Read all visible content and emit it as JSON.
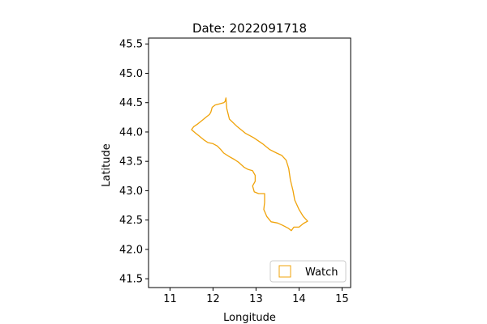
{
  "chart_data": {
    "type": "map",
    "title": "Date: 2022091718",
    "xlabel": "Longitude",
    "ylabel": "Latitude",
    "xlim": [
      10.5,
      15.2
    ],
    "ylim": [
      41.35,
      45.6
    ],
    "xticks": [
      11,
      12,
      13,
      14,
      15
    ],
    "yticks": [
      41.5,
      42.0,
      42.5,
      43.0,
      43.5,
      44.0,
      44.5,
      45.0,
      45.5
    ],
    "xtick_labels": [
      "11",
      "12",
      "13",
      "14",
      "15"
    ],
    "ytick_labels": [
      "41.5",
      "42.0",
      "42.5",
      "43.0",
      "43.5",
      "44.0",
      "44.5",
      "45.0",
      "45.5"
    ],
    "grid": false,
    "legend": {
      "position": "lower-right",
      "entries": [
        {
          "label": "Watch",
          "color": "#f0a30a"
        }
      ]
    },
    "series": [
      {
        "name": "Watch",
        "color": "#f0a30a",
        "points": [
          [
            12.3,
            44.58
          ],
          [
            12.28,
            44.52
          ],
          [
            12.25,
            44.5
          ],
          [
            12.15,
            44.48
          ],
          [
            12.05,
            44.46
          ],
          [
            11.98,
            44.42
          ],
          [
            11.95,
            44.34
          ],
          [
            11.92,
            44.3
          ],
          [
            11.85,
            44.26
          ],
          [
            11.75,
            44.2
          ],
          [
            11.65,
            44.14
          ],
          [
            11.55,
            44.09
          ],
          [
            11.5,
            44.04
          ],
          [
            11.58,
            43.99
          ],
          [
            11.68,
            43.93
          ],
          [
            11.78,
            43.87
          ],
          [
            11.88,
            43.82
          ],
          [
            12.0,
            43.8
          ],
          [
            12.1,
            43.76
          ],
          [
            12.18,
            43.7
          ],
          [
            12.25,
            43.64
          ],
          [
            12.38,
            43.58
          ],
          [
            12.5,
            43.53
          ],
          [
            12.6,
            43.48
          ],
          [
            12.72,
            43.4
          ],
          [
            12.82,
            43.36
          ],
          [
            12.92,
            43.34
          ],
          [
            12.98,
            43.26
          ],
          [
            12.98,
            43.16
          ],
          [
            12.92,
            43.08
          ],
          [
            12.96,
            42.98
          ],
          [
            13.06,
            42.95
          ],
          [
            13.2,
            42.95
          ],
          [
            13.2,
            42.8
          ],
          [
            13.18,
            42.68
          ],
          [
            13.25,
            42.56
          ],
          [
            13.35,
            42.47
          ],
          [
            13.5,
            42.45
          ],
          [
            13.62,
            42.41
          ],
          [
            13.75,
            42.36
          ],
          [
            13.82,
            42.32
          ],
          [
            13.88,
            42.38
          ],
          [
            14.0,
            42.38
          ],
          [
            14.1,
            42.44
          ],
          [
            14.2,
            42.48
          ],
          [
            14.1,
            42.56
          ],
          [
            14.0,
            42.68
          ],
          [
            13.9,
            42.84
          ],
          [
            13.86,
            43.0
          ],
          [
            13.8,
            43.18
          ],
          [
            13.76,
            43.38
          ],
          [
            13.7,
            43.52
          ],
          [
            13.6,
            43.6
          ],
          [
            13.48,
            43.64
          ],
          [
            13.32,
            43.7
          ],
          [
            13.15,
            43.8
          ],
          [
            12.95,
            43.9
          ],
          [
            12.75,
            43.98
          ],
          [
            12.55,
            44.1
          ],
          [
            12.38,
            44.22
          ],
          [
            12.32,
            44.4
          ],
          [
            12.3,
            44.58
          ]
        ]
      }
    ]
  }
}
